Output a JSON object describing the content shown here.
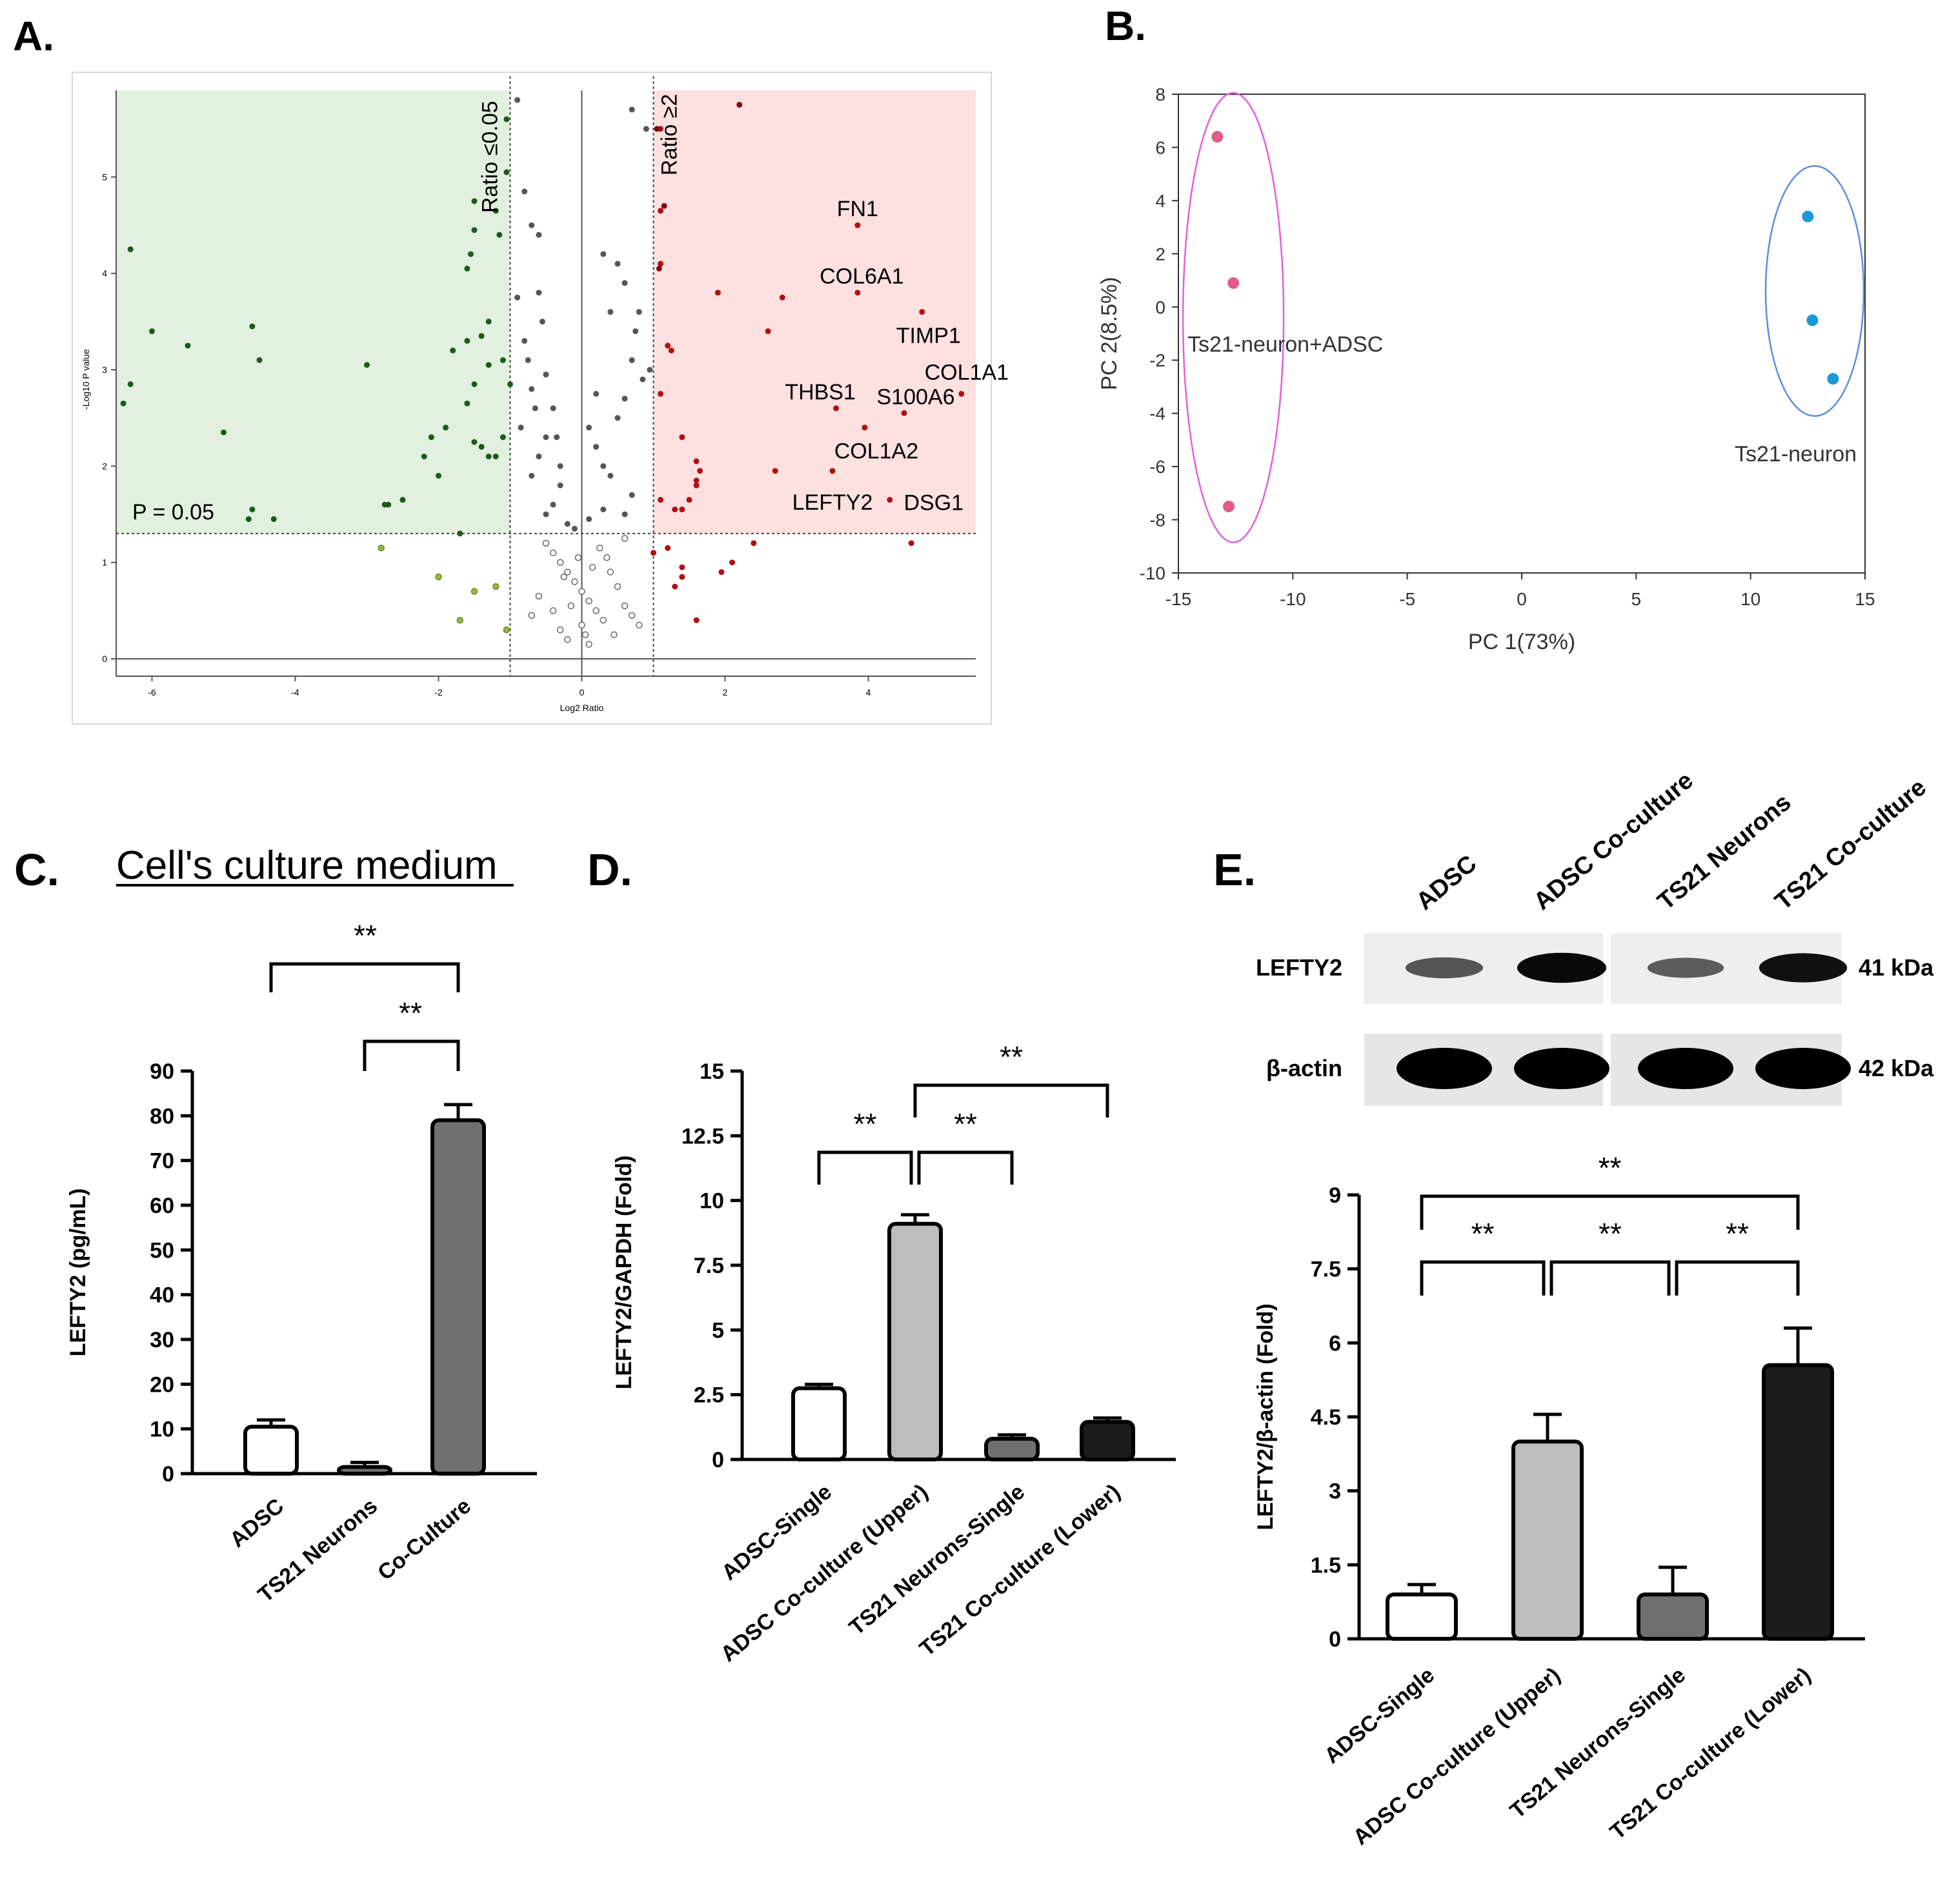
{
  "colors": {
    "green_bg": "#e2f0e0",
    "red_bg": "#fde0e0",
    "green_dot": "#1a5c1a",
    "light_green_dot": "#9ab83a",
    "red_dot": "#b01010",
    "dark_red_dot": "#7a0d0d",
    "grey_dot": "#555555",
    "pink": "#e05a8a",
    "pink_ring": "#e060e0",
    "blue": "#1a9ad6",
    "blue_ring": "#5a8ee0",
    "bar_white": "#ffffff",
    "bar_light": "#bdbdbd",
    "bar_mid": "#707070",
    "bar_dark": "#1c1c1c"
  },
  "chart_data": [
    {
      "panel": "A.",
      "type": "scatter",
      "xlabel": "Log2 Ratio",
      "ylabel": "-Log10 P value",
      "xlim": [
        -6.5,
        5.5
      ],
      "ylim": [
        -0.1,
        5.9
      ],
      "xticks": [
        "-6",
        "-4",
        "-2",
        "0",
        "2",
        "4"
      ],
      "yticks": [
        "0",
        "1",
        "2",
        "3",
        "4",
        "5"
      ],
      "annotations": {
        "p_line": "P = 0.05",
        "left_line": "Ratio ≤0.05",
        "right_line": "Ratio ≥2"
      },
      "thresholds": {
        "p_y": 1.3,
        "left_x": -1,
        "right_x": 1
      },
      "gene_labels": [
        {
          "name": "FN1",
          "x": 3.85,
          "y": 4.5
        },
        {
          "name": "COL6A1",
          "x": 3.8,
          "y": 3.8
        },
        {
          "name": "TIMP1",
          "x": 4.75,
          "y": 3.6
        },
        {
          "name": "COL1A1",
          "x": 5.3,
          "y": 2.75
        },
        {
          "name": "THBS1",
          "x": 3.6,
          "y": 2.6
        },
        {
          "name": "S100A6",
          "x": 4.5,
          "y": 2.55
        },
        {
          "name": "COL1A2",
          "x": 3.95,
          "y": 2.4
        },
        {
          "name": "LEFTY2",
          "x": 3.5,
          "y": 1.95
        },
        {
          "name": "DSG1",
          "x": 4.3,
          "y": 1.65
        }
      ],
      "points": {
        "green": [
          [
            -6.3,
            4.25
          ],
          [
            -6.0,
            3.4
          ],
          [
            -6.4,
            2.65
          ],
          [
            -6.3,
            2.85
          ],
          [
            -5.5,
            3.25
          ],
          [
            -5.0,
            2.35
          ],
          [
            -4.6,
            3.45
          ],
          [
            -4.5,
            3.1
          ],
          [
            -4.6,
            1.55
          ],
          [
            -4.65,
            1.45
          ],
          [
            -4.3,
            1.45
          ],
          [
            -3.0,
            3.05
          ],
          [
            -2.7,
            1.6
          ],
          [
            -2.75,
            1.6
          ],
          [
            -2.5,
            1.65
          ],
          [
            -2.2,
            2.1
          ],
          [
            -2.1,
            2.3
          ],
          [
            -2.0,
            1.9
          ],
          [
            -1.9,
            2.4
          ],
          [
            -1.8,
            3.2
          ],
          [
            -1.6,
            2.65
          ],
          [
            -1.6,
            3.3
          ],
          [
            -1.6,
            4.05
          ],
          [
            -1.5,
            2.85
          ],
          [
            -1.5,
            2.25
          ],
          [
            -1.4,
            3.35
          ],
          [
            -1.4,
            2.2
          ],
          [
            -1.3,
            3.05
          ],
          [
            -1.3,
            2.1
          ],
          [
            -1.2,
            2.1
          ],
          [
            -1.1,
            2.3
          ],
          [
            -1.1,
            3.1
          ],
          [
            -1.0,
            2.85
          ],
          [
            -1.05,
            5.6
          ],
          [
            -1.15,
            4.4
          ],
          [
            -1.2,
            4.65
          ],
          [
            -1.05,
            5.05
          ],
          [
            -1.5,
            4.75
          ],
          [
            -1.55,
            4.2
          ],
          [
            -1.5,
            4.45
          ],
          [
            -1.7,
            1.3
          ],
          [
            -1.3,
            3.5
          ]
        ],
        "light_green": [
          [
            -2.8,
            1.15
          ],
          [
            -2.0,
            0.85
          ],
          [
            -1.5,
            0.7
          ],
          [
            -1.2,
            0.75
          ],
          [
            -1.7,
            0.4
          ],
          [
            -1.05,
            0.3
          ]
        ],
        "red": [
          [
            1.1,
            5.5
          ],
          [
            1.1,
            4.65
          ],
          [
            1.1,
            4.1
          ],
          [
            1.2,
            3.25
          ],
          [
            1.1,
            2.75
          ],
          [
            1.1,
            1.65
          ],
          [
            1.3,
            1.55
          ],
          [
            1.5,
            1.65
          ],
          [
            1.4,
            2.3
          ],
          [
            1.6,
            1.8
          ],
          [
            1.6,
            2.05
          ],
          [
            1.65,
            1.95
          ],
          [
            1.6,
            1.85
          ],
          [
            1.4,
            1.55
          ],
          [
            1.2,
            1.15
          ],
          [
            1.3,
            0.75
          ],
          [
            1.4,
            0.95
          ],
          [
            1.4,
            0.85
          ],
          [
            1.6,
            0.4
          ],
          [
            1.95,
            0.9
          ],
          [
            2.1,
            1.0
          ],
          [
            2.4,
            1.2
          ],
          [
            2.6,
            3.4
          ],
          [
            2.7,
            1.95
          ],
          [
            2.8,
            3.75
          ],
          [
            3.5,
            1.95
          ],
          [
            3.55,
            2.6
          ],
          [
            3.85,
            3.8
          ],
          [
            3.85,
            4.5
          ],
          [
            3.95,
            2.4
          ],
          [
            4.3,
            1.65
          ],
          [
            4.5,
            2.55
          ],
          [
            4.75,
            3.6
          ],
          [
            5.3,
            2.75
          ],
          [
            4.6,
            1.2
          ],
          [
            1.9,
            3.8
          ],
          [
            1.25,
            3.2
          ],
          [
            1.0,
            1.1
          ]
        ],
        "dark_red": [
          [
            2.2,
            5.75
          ],
          [
            1.05,
            5.5
          ],
          [
            1.15,
            4.7
          ],
          [
            1.08,
            4.05
          ]
        ],
        "grey": [
          [
            -0.9,
            5.8
          ],
          [
            -0.7,
            4.5
          ],
          [
            -0.6,
            3.8
          ],
          [
            -0.55,
            3.5
          ],
          [
            -0.8,
            3.3
          ],
          [
            -0.75,
            3.1
          ],
          [
            -0.7,
            2.8
          ],
          [
            -0.65,
            2.6
          ],
          [
            -0.85,
            2.4
          ],
          [
            -0.5,
            2.3
          ],
          [
            -0.6,
            2.1
          ],
          [
            -0.7,
            1.9
          ],
          [
            -0.4,
            2.6
          ],
          [
            -0.35,
            2.3
          ],
          [
            -0.3,
            2.0
          ],
          [
            -0.3,
            1.8
          ],
          [
            -0.4,
            1.6
          ],
          [
            -0.5,
            1.5
          ],
          [
            -0.2,
            1.4
          ],
          [
            0.1,
            2.4
          ],
          [
            0.2,
            2.2
          ],
          [
            0.3,
            2.0
          ],
          [
            0.4,
            1.9
          ],
          [
            0.5,
            2.5
          ],
          [
            0.6,
            2.7
          ],
          [
            0.7,
            3.1
          ],
          [
            0.75,
            3.4
          ],
          [
            0.8,
            3.6
          ],
          [
            0.6,
            3.9
          ],
          [
            0.3,
            4.2
          ],
          [
            0.5,
            4.1
          ],
          [
            0.4,
            3.6
          ],
          [
            0.7,
            1.7
          ],
          [
            0.6,
            1.5
          ],
          [
            0.3,
            1.55
          ],
          [
            0.1,
            1.45
          ],
          [
            -0.1,
            1.35
          ],
          [
            -0.8,
            4.85
          ],
          [
            -0.6,
            4.4
          ],
          [
            -0.9,
            3.75
          ],
          [
            0.95,
            3.0
          ],
          [
            0.85,
            2.9
          ],
          [
            0.7,
            5.7
          ],
          [
            0.9,
            5.5
          ],
          [
            -0.5,
            2.95
          ],
          [
            0.2,
            2.75
          ]
        ],
        "grey_open": [
          [
            -0.5,
            1.2
          ],
          [
            -0.4,
            1.1
          ],
          [
            -0.3,
            1.0
          ],
          [
            -0.2,
            0.9
          ],
          [
            -0.1,
            0.8
          ],
          [
            0.0,
            0.7
          ],
          [
            0.1,
            0.6
          ],
          [
            0.2,
            0.5
          ],
          [
            0.3,
            0.4
          ],
          [
            -0.3,
            0.3
          ],
          [
            -0.2,
            0.2
          ],
          [
            0.1,
            0.15
          ],
          [
            0.4,
            0.9
          ],
          [
            0.5,
            0.75
          ],
          [
            0.6,
            0.55
          ],
          [
            0.7,
            0.45
          ],
          [
            0.8,
            0.35
          ],
          [
            -0.6,
            0.65
          ],
          [
            -0.7,
            0.45
          ],
          [
            0.25,
            1.15
          ],
          [
            0.35,
            1.05
          ],
          [
            -0.05,
            1.05
          ],
          [
            0.0,
            0.35
          ],
          [
            -0.15,
            0.55
          ],
          [
            0.15,
            0.95
          ],
          [
            0.6,
            1.25
          ],
          [
            -0.4,
            0.5
          ],
          [
            0.45,
            0.25
          ],
          [
            -0.25,
            0.85
          ],
          [
            0.05,
            0.25
          ]
        ]
      }
    },
    {
      "panel": "B.",
      "type": "scatter",
      "xlabel": "PC 1(73%)",
      "ylabel": "PC 2(8.5%)",
      "xlim": [
        -15,
        15
      ],
      "ylim": [
        -10,
        8
      ],
      "xticks": [
        "-15",
        "-10",
        "-5",
        "0",
        "5",
        "10",
        "15"
      ],
      "yticks": [
        "8",
        "6",
        "4",
        "2",
        "0",
        "-2",
        "-4",
        "-6",
        "-8",
        "-10"
      ],
      "series": [
        {
          "name": "Ts21-neuron+ADSC",
          "points": [
            [
              -13.3,
              6.4
            ],
            [
              -12.6,
              0.9
            ],
            [
              -12.8,
              -7.5
            ]
          ]
        },
        {
          "name": "Ts21-neuron",
          "points": [
            [
              12.5,
              3.4
            ],
            [
              12.7,
              -0.5
            ],
            [
              13.6,
              -2.7
            ]
          ]
        }
      ]
    },
    {
      "panel": "C.",
      "type": "bar",
      "title": "Cell's culture medium",
      "ylabel": "LEFTY2 (pg/mL)",
      "ylim": [
        0,
        90
      ],
      "yticks": [
        "0",
        "10",
        "20",
        "30",
        "40",
        "50",
        "60",
        "70",
        "80",
        "90"
      ],
      "categories": [
        "ADSC",
        "TS21 Neurons",
        "Co-Culture"
      ],
      "values": [
        10.5,
        1.5,
        79
      ],
      "errors": [
        1.5,
        1.0,
        3.5
      ],
      "significance": [
        {
          "from": 0,
          "to": 2,
          "label": "**"
        },
        {
          "from": 1,
          "to": 2,
          "label": "**"
        }
      ]
    },
    {
      "panel": "D.",
      "type": "bar",
      "ylabel": "LEFTY2/GAPDH (Fold)",
      "ylim": [
        0,
        15
      ],
      "yticks": [
        "0",
        "2.5",
        "5",
        "7.5",
        "10",
        "12.5",
        "15"
      ],
      "categories": [
        "ADSC-Single",
        "ADSC Co-culture (Upper)",
        "TS21 Neurons-Single",
        "TS21 Co-culture (Lower)"
      ],
      "values": [
        2.75,
        9.1,
        0.8,
        1.45
      ],
      "errors": [
        0.15,
        0.35,
        0.15,
        0.15
      ],
      "significance": [
        {
          "from": 0,
          "to": 1,
          "label": "**"
        },
        {
          "from": 1,
          "to": 2,
          "label": "**"
        },
        {
          "from": 1,
          "to": 3,
          "label": "**"
        }
      ]
    },
    {
      "panel": "E.",
      "type": "bar",
      "ylabel": "LEFTY2/β-actin (Fold)",
      "ylim": [
        0,
        9
      ],
      "yticks": [
        "0",
        "1.5",
        "3",
        "4.5",
        "6",
        "7.5",
        "9"
      ],
      "categories": [
        "ADSC-Single",
        "ADSC Co-culture (Upper)",
        "TS21 Neurons-Single",
        "TS21 Co-culture (Lower)"
      ],
      "values": [
        0.9,
        4.0,
        0.9,
        5.55
      ],
      "errors": [
        0.2,
        0.55,
        0.55,
        0.75
      ],
      "significance": [
        {
          "from": 0,
          "to": 1,
          "label": "**"
        },
        {
          "from": 1,
          "to": 2,
          "label": "**"
        },
        {
          "from": 2,
          "to": 3,
          "label": "**"
        },
        {
          "from": 0,
          "to": 3,
          "label": "**"
        }
      ],
      "blot": {
        "lanes": [
          "ADSC",
          "ADSC Co-culture",
          "TS21 Neurons",
          "TS21 Co-culture"
        ],
        "rows": [
          {
            "label": "LEFTY2",
            "size": "41 kDa",
            "intensity": [
              0.45,
              0.95,
              0.4,
              0.9
            ]
          },
          {
            "label": "β-actin",
            "size": "42 kDa",
            "intensity": [
              1,
              1,
              1,
              1
            ]
          }
        ]
      }
    }
  ]
}
